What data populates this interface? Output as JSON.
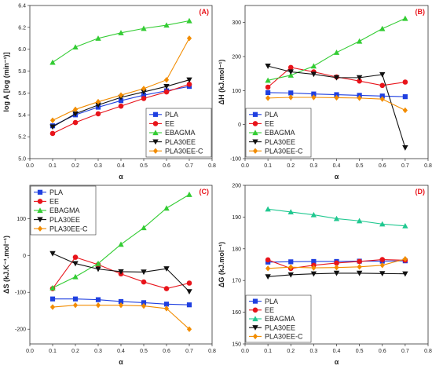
{
  "chart_data": [
    {
      "type": "line",
      "panel_label": "(A)",
      "xlabel": "α",
      "ylabel": "log A [log (min⁻¹)]",
      "xlim": [
        0.0,
        0.8
      ],
      "ylim": [
        5.0,
        6.4
      ],
      "xticks": [
        "0.0",
        "0.1",
        "0.2",
        "0.3",
        "0.4",
        "0.5",
        "0.6",
        "0.7",
        "0.8"
      ],
      "yticks": [
        "5.0",
        "5.2",
        "5.4",
        "5.6",
        "5.8",
        "6.0",
        "6.2",
        "6.4"
      ],
      "x": [
        0.1,
        0.2,
        0.3,
        0.4,
        0.5,
        0.6,
        0.7
      ],
      "legend_position": "lower-right",
      "series": [
        {
          "name": "PLA",
          "color": "#1f3fe0",
          "marker": "square",
          "values": [
            5.3,
            5.4,
            5.47,
            5.53,
            5.58,
            5.62,
            5.66
          ]
        },
        {
          "name": "EE",
          "color": "#e8131a",
          "marker": "circle",
          "values": [
            5.23,
            5.33,
            5.41,
            5.48,
            5.55,
            5.61,
            5.68
          ]
        },
        {
          "name": "EBAGMA",
          "color": "#33cc33",
          "marker": "triangle-up",
          "values": [
            5.88,
            6.02,
            6.1,
            6.15,
            6.19,
            6.22,
            6.26
          ]
        },
        {
          "name": "PLA30EE",
          "color": "#111111",
          "marker": "triangle-down",
          "values": [
            5.29,
            5.41,
            5.49,
            5.56,
            5.61,
            5.66,
            5.72
          ]
        },
        {
          "name": "PLA30EE-C",
          "color": "#f28c00",
          "marker": "diamond",
          "values": [
            5.35,
            5.45,
            5.52,
            5.58,
            5.64,
            5.72,
            6.1
          ]
        }
      ]
    },
    {
      "type": "line",
      "panel_label": "(B)",
      "xlabel": "α",
      "ylabel": "ΔH (kJ.mol⁻¹)",
      "xlim": [
        0.0,
        0.8
      ],
      "ylim": [
        -100,
        350
      ],
      "xticks": [
        "0.0",
        "0.1",
        "0.2",
        "0.3",
        "0.4",
        "0.5",
        "0.6",
        "0.7",
        "0.8"
      ],
      "yticks": [
        "-100",
        "0",
        "100",
        "200",
        "300"
      ],
      "x": [
        0.1,
        0.2,
        0.3,
        0.4,
        0.5,
        0.6,
        0.7
      ],
      "legend_position": "lower-left",
      "series": [
        {
          "name": "PLA",
          "color": "#1f3fe0",
          "marker": "square",
          "values": [
            94,
            93,
            90,
            88,
            86,
            84,
            82
          ]
        },
        {
          "name": "EE",
          "color": "#e8131a",
          "marker": "circle",
          "values": [
            110,
            168,
            155,
            140,
            128,
            115,
            125
          ]
        },
        {
          "name": "EBAGMA",
          "color": "#33cc33",
          "marker": "triangle-up",
          "values": [
            130,
            145,
            172,
            212,
            245,
            282,
            312
          ]
        },
        {
          "name": "PLA30EE",
          "color": "#111111",
          "marker": "triangle-down",
          "values": [
            172,
            155,
            148,
            138,
            138,
            147,
            -68
          ]
        },
        {
          "name": "PLA30EE-C",
          "color": "#f28c00",
          "marker": "diamond",
          "values": [
            78,
            80,
            80,
            79,
            78,
            75,
            42
          ]
        }
      ]
    },
    {
      "type": "line",
      "panel_label": "(C)",
      "xlabel": "α",
      "ylabel": "ΔS (kJ.K⁻¹.mol⁻¹)",
      "xlim": [
        0.0,
        0.8
      ],
      "ylim": [
        -240,
        190
      ],
      "xticks": [
        "0.0",
        "0.1",
        "0.2",
        "0.3",
        "0.4",
        "0.5",
        "0.6",
        "0.7",
        "0.8"
      ],
      "yticks": [
        "-200",
        "-100",
        "0",
        "100"
      ],
      "x": [
        0.1,
        0.2,
        0.3,
        0.4,
        0.5,
        0.6,
        0.7
      ],
      "legend_position": "upper-left",
      "series": [
        {
          "name": "PLA",
          "color": "#1f3fe0",
          "marker": "square",
          "values": [
            -118,
            -118,
            -120,
            -125,
            -128,
            -132,
            -134
          ]
        },
        {
          "name": "EE",
          "color": "#e8131a",
          "marker": "circle",
          "values": [
            -90,
            -5,
            -25,
            -50,
            -72,
            -90,
            -75
          ]
        },
        {
          "name": "EBAGMA",
          "color": "#33cc33",
          "marker": "triangle-up",
          "values": [
            -88,
            -58,
            -22,
            30,
            75,
            128,
            165
          ]
        },
        {
          "name": "PLA30EE",
          "color": "#111111",
          "marker": "triangle-down",
          "values": [
            5,
            -22,
            -37,
            -44,
            -45,
            -36,
            -98
          ]
        },
        {
          "name": "PLA30EE-C",
          "color": "#f28c00",
          "marker": "diamond",
          "values": [
            -140,
            -135,
            -135,
            -135,
            -137,
            -144,
            -200
          ]
        }
      ]
    },
    {
      "type": "line",
      "panel_label": "(D)",
      "xlabel": "α",
      "ylabel": "ΔG (kJ.mol⁻¹)",
      "xlim": [
        0.0,
        0.8
      ],
      "ylim": [
        150,
        200
      ],
      "xticks": [
        "0.0",
        "0.1",
        "0.2",
        "0.3",
        "0.4",
        "0.5",
        "0.6",
        "0.7",
        "0.8"
      ],
      "yticks": [
        "150",
        "160",
        "170",
        "180",
        "190",
        "200"
      ],
      "x": [
        0.1,
        0.2,
        0.3,
        0.4,
        0.5,
        0.6,
        0.7
      ],
      "legend_position": "lower-left",
      "series": [
        {
          "name": "PLA",
          "color": "#1f3fe0",
          "marker": "square",
          "values": [
            175.8,
            175.9,
            176.0,
            176.0,
            176.1,
            176.1,
            176.2
          ]
        },
        {
          "name": "EE",
          "color": "#e8131a",
          "marker": "circle",
          "values": [
            176.5,
            173.8,
            174.8,
            175.5,
            176.0,
            176.6,
            176.4
          ]
        },
        {
          "name": "EBAGMA",
          "color": "#20c890",
          "marker": "triangle-up",
          "values": [
            192.5,
            191.6,
            190.7,
            189.5,
            188.8,
            187.8,
            187.2
          ]
        },
        {
          "name": "PLA30EE",
          "color": "#111111",
          "marker": "triangle-down",
          "values": [
            171.2,
            171.8,
            172.1,
            172.3,
            172.3,
            172.2,
            172.1
          ]
        },
        {
          "name": "PLA30EE-C",
          "color": "#f28c00",
          "marker": "diamond",
          "values": [
            173.8,
            174.2,
            174.0,
            174.1,
            174.3,
            174.8,
            176.8
          ]
        }
      ]
    }
  ]
}
